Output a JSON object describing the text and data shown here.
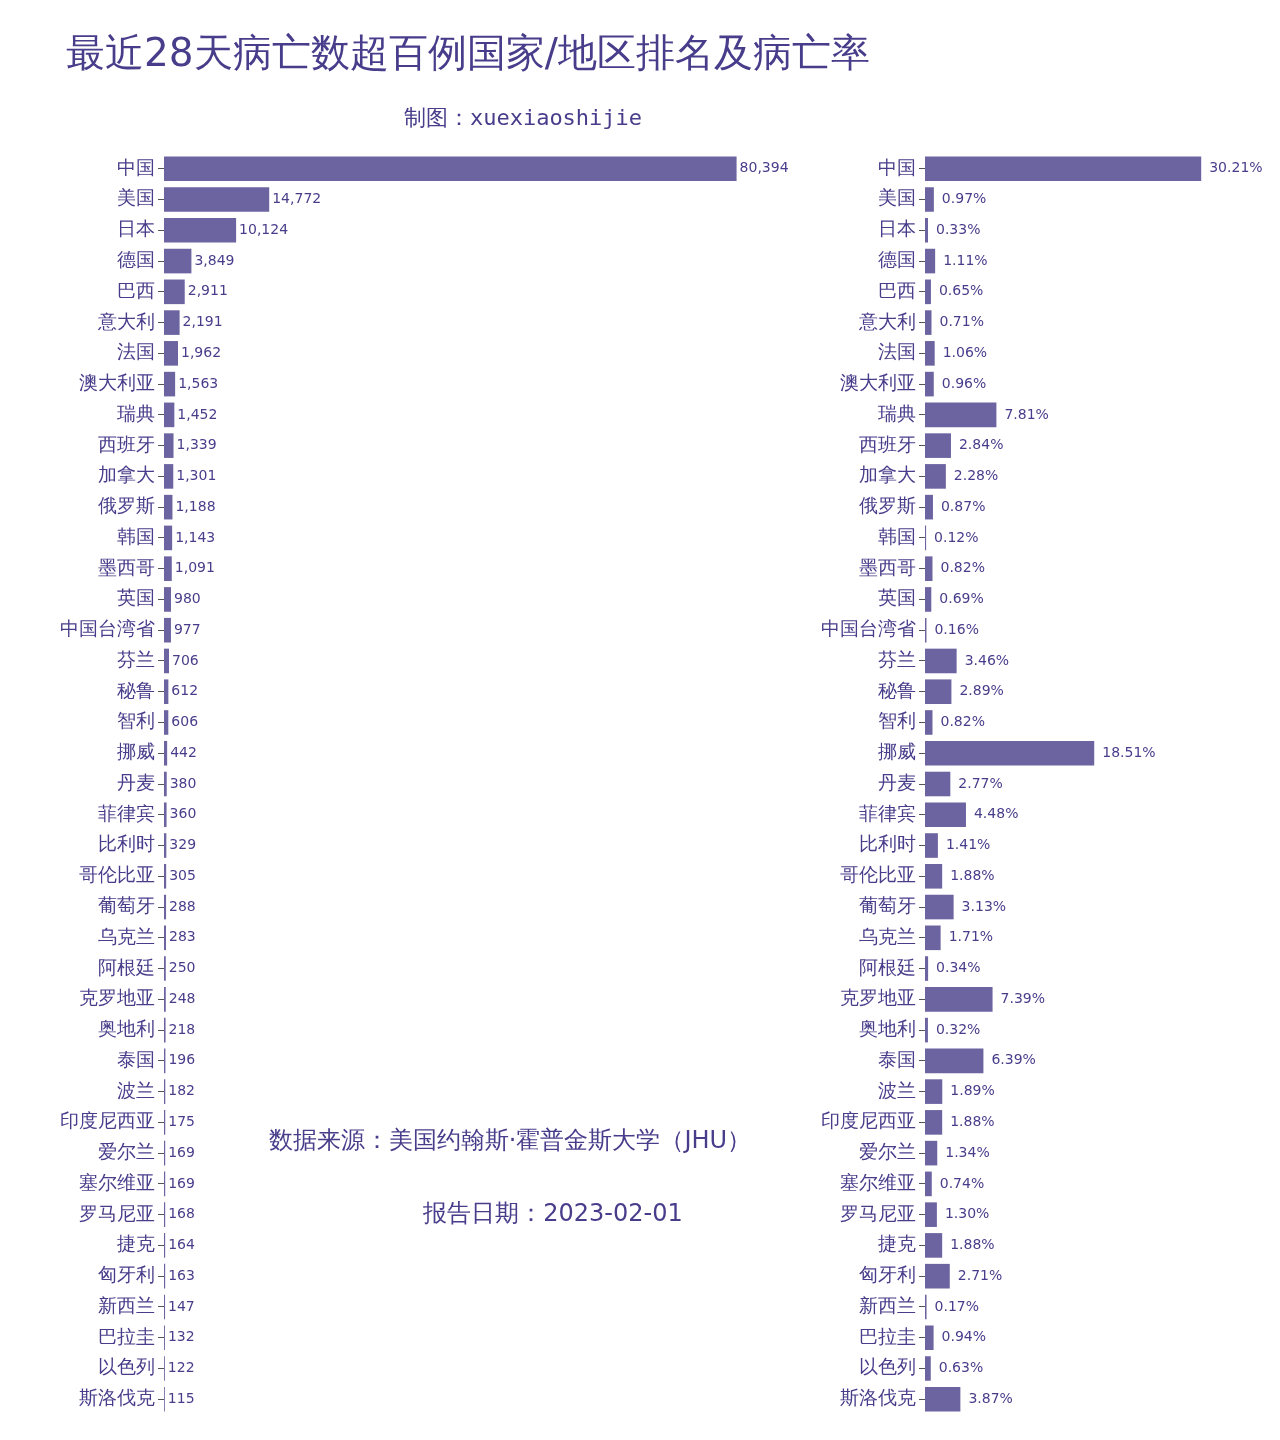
{
  "chart_data": [
    {
      "type": "bar",
      "orientation": "horizontal",
      "title": "最近28天病亡数超百例国家/地区排名及病亡率",
      "subtitle": "制图：xuexiaoshijie",
      "annotations": [
        "数据来源：美国约翰斯·霍普金斯大学（JHU）",
        "报告日期：2023-02-01"
      ],
      "categories": [
        "中国",
        "美国",
        "日本",
        "德国",
        "巴西",
        "意大利",
        "法国",
        "澳大利亚",
        "瑞典",
        "西班牙",
        "加拿大",
        "俄罗斯",
        "韩国",
        "墨西哥",
        "英国",
        "中国台湾省",
        "芬兰",
        "秘鲁",
        "智利",
        "挪威",
        "丹麦",
        "菲律宾",
        "比利时",
        "哥伦比亚",
        "葡萄牙",
        "乌克兰",
        "阿根廷",
        "克罗地亚",
        "奥地利",
        "泰国",
        "波兰",
        "印度尼西亚",
        "爱尔兰",
        "塞尔维亚",
        "罗马尼亚",
        "捷克",
        "匈牙利",
        "新西兰",
        "巴拉圭",
        "以色列",
        "斯洛伐克"
      ],
      "values": [
        80394,
        14772,
        10124,
        3849,
        2911,
        2191,
        1962,
        1563,
        1452,
        1339,
        1301,
        1188,
        1143,
        1091,
        980,
        977,
        706,
        612,
        606,
        442,
        380,
        360,
        329,
        305,
        288,
        283,
        250,
        248,
        218,
        196,
        182,
        175,
        169,
        169,
        168,
        164,
        163,
        147,
        132,
        122,
        115
      ],
      "value_labels": [
        "80,394",
        "14,772",
        "10,124",
        "3,849",
        "2,911",
        "2,191",
        "1,962",
        "1,563",
        "1,452",
        "1,339",
        "1,301",
        "1,188",
        "1,143",
        "1,091",
        "980",
        "977",
        "706",
        "612",
        "606",
        "442",
        "380",
        "360",
        "329",
        "305",
        "288",
        "283",
        "250",
        "248",
        "218",
        "196",
        "182",
        "175",
        "169",
        "169",
        "168",
        "164",
        "163",
        "147",
        "132",
        "122",
        "115"
      ],
      "color": "#6b64a1",
      "tick_labels": "y"
    },
    {
      "type": "bar",
      "orientation": "horizontal",
      "categories": [
        "中国",
        "美国",
        "日本",
        "德国",
        "巴西",
        "意大利",
        "法国",
        "澳大利亚",
        "瑞典",
        "西班牙",
        "加拿大",
        "俄罗斯",
        "韩国",
        "墨西哥",
        "英国",
        "中国台湾省",
        "芬兰",
        "秘鲁",
        "智利",
        "挪威",
        "丹麦",
        "菲律宾",
        "比利时",
        "哥伦比亚",
        "葡萄牙",
        "乌克兰",
        "阿根廷",
        "克罗地亚",
        "奥地利",
        "泰国",
        "波兰",
        "印度尼西亚",
        "爱尔兰",
        "塞尔维亚",
        "罗马尼亚",
        "捷克",
        "匈牙利",
        "新西兰",
        "巴拉圭",
        "以色列",
        "斯洛伐克"
      ],
      "values": [
        30.21,
        0.97,
        0.33,
        1.11,
        0.65,
        0.71,
        1.06,
        0.96,
        7.81,
        2.84,
        2.28,
        0.87,
        0.12,
        0.82,
        0.69,
        0.16,
        3.46,
        2.89,
        0.82,
        18.51,
        2.77,
        4.48,
        1.41,
        1.88,
        3.13,
        1.71,
        0.34,
        7.39,
        0.32,
        6.39,
        1.89,
        1.88,
        1.34,
        0.74,
        1.3,
        1.88,
        2.71,
        0.17,
        0.94,
        0.63,
        3.87
      ],
      "value_labels": [
        "30.21%",
        "0.97%",
        "0.33%",
        "1.11%",
        "0.65%",
        "0.71%",
        "1.06%",
        "0.96%",
        "7.81%",
        "2.84%",
        "2.28%",
        "0.87%",
        "0.12%",
        "0.82%",
        "0.69%",
        "0.16%",
        "3.46%",
        "2.89%",
        "0.82%",
        "18.51%",
        "2.77%",
        "4.48%",
        "1.41%",
        "1.88%",
        "3.13%",
        "1.71%",
        "0.34%",
        "7.39%",
        "0.32%",
        "6.39%",
        "1.89%",
        "1.88%",
        "1.34%",
        "0.74%",
        "1.30%",
        "1.88%",
        "2.71%",
        "0.17%",
        "0.94%",
        "0.63%",
        "3.87%"
      ],
      "color": "#6b64a1",
      "tick_labels": "y"
    }
  ]
}
